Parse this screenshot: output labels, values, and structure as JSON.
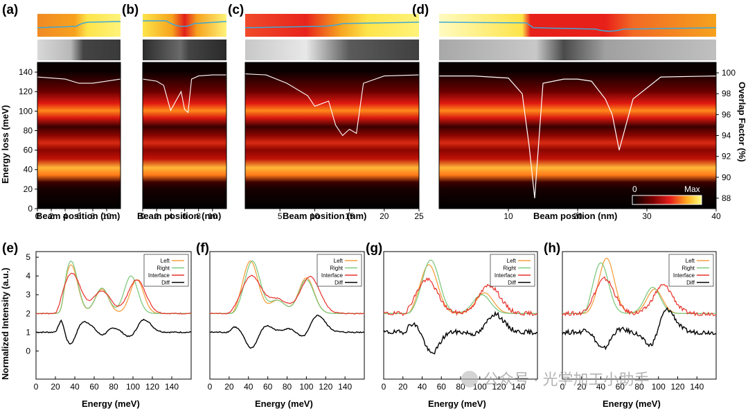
{
  "chart_data": [
    {
      "type": "heatmap",
      "panel": "(a)",
      "xlabel": "Beam position (nm)",
      "xlim": [
        0,
        12
      ],
      "xticks": [
        "0",
        "2",
        "4",
        "6",
        "8",
        "10"
      ],
      "ylabel": "Energy loss (meV)",
      "ylim": [
        0,
        150
      ],
      "yticks": [
        "0",
        "20",
        "40",
        "60",
        "80",
        "100",
        "120",
        "140"
      ],
      "bands_meV": [
        40,
        65,
        100
      ],
      "overlay_line": {
        "x": [
          0,
          2,
          4,
          6,
          8,
          10,
          12
        ],
        "y": [
          99.6,
          99.5,
          99.4,
          99.0,
          99.0,
          99.2,
          99.4
        ]
      }
    },
    {
      "type": "heatmap",
      "panel": "(b)",
      "xlabel": "Beam position (nm)",
      "xlim": [
        0,
        12
      ],
      "xticks": [
        "0",
        "2",
        "4",
        "6",
        "8",
        "10"
      ],
      "ylim": [
        0,
        150
      ],
      "bands_meV": [
        40,
        65,
        100
      ],
      "overlay_line": {
        "x": [
          0,
          2,
          3,
          4,
          5,
          5.5,
          6,
          6.5,
          7,
          8,
          10,
          12
        ],
        "y": [
          99.4,
          99.2,
          98.8,
          96.4,
          97.6,
          98.2,
          96.5,
          96.2,
          99.4,
          99.7,
          99.8,
          99.8
        ]
      }
    },
    {
      "type": "heatmap",
      "panel": "(c)",
      "xlabel": "Beam position (nm)",
      "xlim": [
        0,
        25
      ],
      "xticks": [
        "5",
        "10",
        "15",
        "20",
        "25"
      ],
      "ylim": [
        0,
        150
      ],
      "bands_meV": [
        40,
        65,
        100
      ],
      "overlay_line": {
        "x": [
          0,
          3,
          6,
          9,
          10,
          12,
          13,
          14,
          15,
          16,
          17,
          20,
          25
        ],
        "y": [
          99.9,
          99.8,
          99.0,
          97.8,
          96.8,
          97.3,
          95.0,
          94.0,
          94.6,
          94.2,
          99.0,
          99.7,
          99.8
        ]
      }
    },
    {
      "type": "heatmap",
      "panel": "(d)",
      "xlabel": "Beam position (nm)",
      "xlim": [
        0,
        40
      ],
      "xticks": [
        "10",
        "20",
        "30",
        "40"
      ],
      "y2label": "Overlap Factor (%)",
      "y2lim": [
        87,
        101
      ],
      "y2ticks": [
        "88",
        "90",
        "92",
        "94",
        "96",
        "98",
        "100"
      ],
      "colorbar": {
        "min_label": "0",
        "max_label": "Max"
      },
      "overlay_line": {
        "x": [
          0,
          5,
          10,
          12,
          13,
          13.8,
          15,
          18,
          20,
          22,
          24,
          25,
          26,
          28,
          32,
          40
        ],
        "y": [
          99.7,
          99.7,
          99.5,
          98.0,
          93.0,
          88.0,
          99.0,
          99.4,
          99.4,
          99.2,
          97.5,
          96.0,
          92.6,
          97.5,
          99.6,
          99.7
        ]
      }
    },
    {
      "type": "line",
      "panel": "(e)",
      "xlabel": "Energy (meV)",
      "ylabel": "Normalized Intensity (a.u.)",
      "xlim": [
        0,
        160
      ],
      "ylim": [
        -1.5,
        5.3
      ],
      "xticks": [
        "0",
        "20",
        "40",
        "60",
        "80",
        "100",
        "120",
        "140"
      ],
      "yticks": [
        "0",
        "1",
        "2",
        "3",
        "4",
        "5"
      ],
      "legend": [
        "Left",
        "Right",
        "Interface",
        "Diff"
      ],
      "peaks": {
        "left": [
          [
            36,
            4.6
          ],
          [
            68,
            3.3
          ],
          [
            104,
            3.8
          ]
        ],
        "right": [
          [
            36,
            4.8
          ],
          [
            68,
            3.35
          ],
          [
            98,
            4.0
          ]
        ],
        "interface": [
          [
            37,
            4.15
          ],
          [
            68,
            3.2
          ],
          [
            104,
            3.8
          ]
        ]
      }
    },
    {
      "type": "line",
      "panel": "(f)",
      "xlabel": "Energy (meV)",
      "xlim": [
        0,
        160
      ],
      "xticks": [
        "0",
        "20",
        "40",
        "60",
        "80",
        "100",
        "120",
        "140"
      ],
      "legend": [
        "Left",
        "Right",
        "Interface",
        "Diff"
      ],
      "peaks": {
        "left": [
          [
            42,
            4.8
          ],
          [
            70,
            2.7
          ],
          [
            100,
            3.9
          ]
        ],
        "right": [
          [
            44,
            4.8
          ],
          [
            70,
            2.7
          ],
          [
            100,
            3.8
          ]
        ],
        "interface": [
          [
            43,
            4.0
          ],
          [
            70,
            2.75
          ],
          [
            104,
            3.95
          ]
        ]
      }
    },
    {
      "type": "line",
      "panel": "(g)",
      "xlabel": "Energy (meV)",
      "xlim": [
        0,
        160
      ],
      "xticks": [
        "0",
        "20",
        "40",
        "60",
        "80",
        "100",
        "120",
        "140"
      ],
      "legend": [
        "Left",
        "Right",
        "Interface",
        "Diff"
      ],
      "peaks": {
        "left": [
          [
            47,
            4.6
          ],
          [
            105,
            3.1
          ]
        ],
        "right": [
          [
            49,
            4.85
          ],
          [
            102,
            3.0
          ]
        ],
        "interface": [
          [
            45,
            3.8
          ],
          [
            110,
            3.5
          ]
        ]
      }
    },
    {
      "type": "line",
      "panel": "(h)",
      "xlabel": "Energy (meV)",
      "xlim": [
        0,
        160
      ],
      "xticks": [
        "0",
        "20",
        "40",
        "60",
        "80",
        "100",
        "120",
        "140"
      ],
      "legend": [
        "Left",
        "Right",
        "Interface",
        "Diff"
      ],
      "peaks": {
        "left": [
          [
            46,
            4.95
          ],
          [
            96,
            3.3
          ]
        ],
        "right": [
          [
            40,
            4.7
          ],
          [
            94,
            3.4
          ]
        ],
        "interface": [
          [
            44,
            3.85
          ],
          [
            105,
            3.5
          ]
        ]
      }
    }
  ],
  "colors": {
    "left": "#f5a041",
    "right": "#7fc97f",
    "interface": "#e8302a",
    "diff": "#000000",
    "profile": "#3ea8d8"
  },
  "watermark": "公众号 · 光学加工小助手"
}
